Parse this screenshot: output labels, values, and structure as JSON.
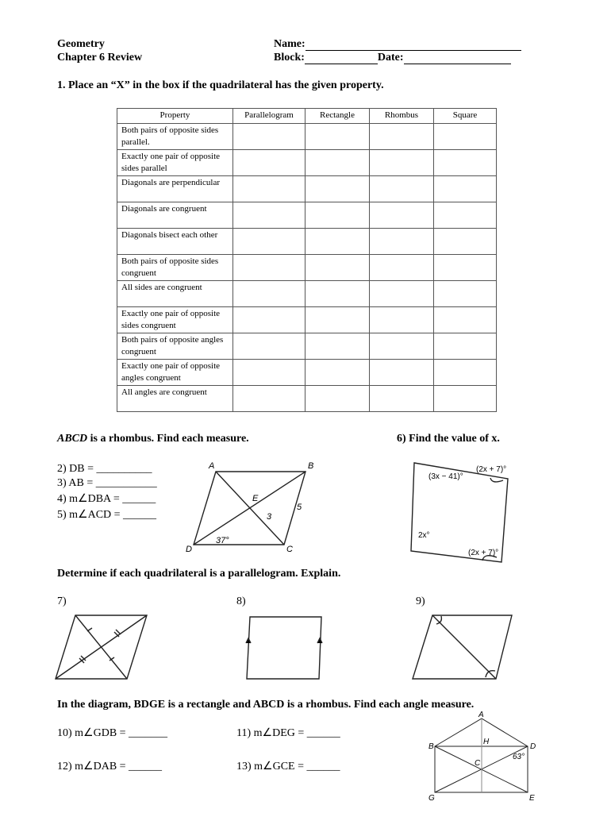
{
  "header": {
    "course": "Geometry",
    "chapter": "Chapter 6 Review",
    "name_label": "Name:",
    "block_label": "Block:",
    "date_label": "Date:"
  },
  "q1": {
    "prompt": "1.  Place an “X” in the box if the quadrilateral has the given property.",
    "columns": [
      "Property",
      "Parallelogram",
      "Rectangle",
      "Rhombus",
      "Square"
    ],
    "rows": [
      "Both pairs of opposite sides parallel.",
      "Exactly one pair of opposite sides parallel",
      "Diagonals are perpendicular",
      "Diagonals are congruent",
      "Diagonals bisect each other",
      "Both pairs of opposite sides congruent",
      "All sides are congruent",
      "Exactly one pair of opposite sides congruent",
      "Both pairs of opposite angles congruent",
      "Exactly one pair of opposite angles congruent",
      "All angles are congruent"
    ]
  },
  "rhombus": {
    "heading_var": "ABCD",
    "heading": " is a rhombus. Find each measure.",
    "items": [
      "2)  DB = __________",
      "3) AB = ___________",
      "4)  m∠DBA = ______",
      "5)  m∠ACD = ______"
    ],
    "labels": {
      "A": "A",
      "B": "B",
      "C": "C",
      "D": "D",
      "E": "E",
      "ec": "3",
      "bc": "5",
      "angle": "37°"
    }
  },
  "q6": {
    "prompt": "6)  Find the value of x.",
    "labels": [
      "(3x − 41)°",
      "(2x + 7)°",
      "2x°",
      "(2x + 7)°"
    ]
  },
  "para": {
    "prompt": "Determine if each quadrilateral is a parallelogram. Explain.",
    "items": [
      "7)",
      "8)",
      "9)"
    ]
  },
  "last": {
    "prompt": "In the diagram, BDGE is a rectangle and ABCD is a rhombus. Find each angle measure.",
    "items": [
      "10)  m∠GDB = _______",
      "11)  m∠DEG = ______",
      "12)  m∠DAB = ______",
      "13)  m∠GCE = ______"
    ],
    "labels": {
      "A": "A",
      "B": "B",
      "D": "D",
      "H": "H",
      "C": "C",
      "G": "G",
      "E": "E",
      "angle": "63°"
    }
  }
}
